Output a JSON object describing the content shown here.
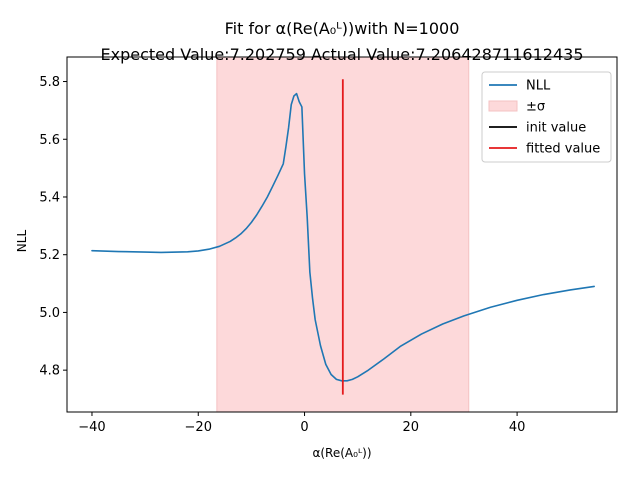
{
  "chart_data": {
    "type": "line",
    "title_line1": "Fit for α(Re(A₀ᴸ))with N=1000",
    "title_line2": "Expected Value:7.202759 Actual Value:7.206428711612435",
    "xlabel": "α(Re(A₀ᴸ))",
    "ylabel": "NLL",
    "xlim": [
      -44.7,
      58.8
    ],
    "ylim": [
      4.655,
      5.885
    ],
    "xticks": [
      -40,
      -20,
      0,
      20,
      40
    ],
    "xtick_labels": [
      "−40",
      "−20",
      "0",
      "20",
      "40"
    ],
    "yticks": [
      4.8,
      5.0,
      5.2,
      5.4,
      5.6,
      5.8
    ],
    "ytick_labels": [
      "4.8",
      "5.0",
      "5.2",
      "5.4",
      "5.6",
      "5.8"
    ],
    "grid": false,
    "legend_position": "top-right",
    "series": [
      {
        "name": "NLL",
        "color": "#1f77b4",
        "x": [
          -40,
          -35,
          -30,
          -27,
          -24,
          -22,
          -20,
          -18,
          -16,
          -14,
          -13,
          -12,
          -11,
          -10,
          -9,
          -8,
          -7,
          -6,
          -5,
          -4,
          -3.5,
          -3,
          -2.5,
          -2,
          -1.5,
          -1,
          -0.5,
          0,
          0.5,
          1,
          1.5,
          2,
          2.5,
          3,
          4,
          5,
          6,
          7,
          8,
          9,
          10,
          12,
          15,
          18,
          22,
          26,
          30,
          35,
          40,
          45,
          50,
          54.5
        ],
        "y": [
          5.214,
          5.211,
          5.209,
          5.208,
          5.209,
          5.21,
          5.213,
          5.219,
          5.229,
          5.246,
          5.258,
          5.272,
          5.29,
          5.312,
          5.338,
          5.368,
          5.4,
          5.437,
          5.475,
          5.515,
          5.575,
          5.64,
          5.72,
          5.75,
          5.758,
          5.73,
          5.712,
          5.48,
          5.33,
          5.14,
          5.05,
          4.975,
          4.93,
          4.885,
          4.82,
          4.785,
          4.768,
          4.763,
          4.763,
          4.768,
          4.777,
          4.8,
          4.84,
          4.882,
          4.925,
          4.96,
          4.988,
          5.018,
          5.042,
          5.062,
          5.078,
          5.09
        ]
      }
    ],
    "sigma_band": {
      "name": "±σ",
      "xmin": -16.5,
      "xmax": 30.9,
      "color": "#fdd9da"
    },
    "init_value": {
      "name": "init value",
      "color": "#000000"
    },
    "fitted_value": {
      "name": "fitted value",
      "x": 7.206,
      "ymin": 4.715,
      "ymax": 5.808,
      "color": "#e41a1c"
    }
  }
}
